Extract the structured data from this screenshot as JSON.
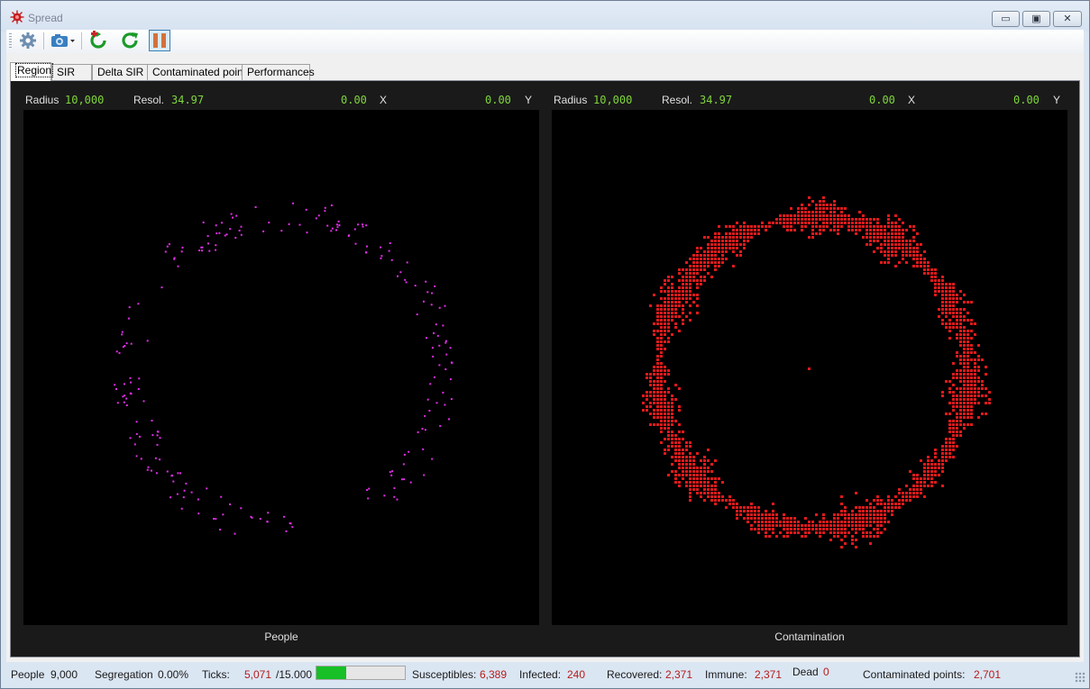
{
  "window": {
    "title": "Spread",
    "min_label": "▭",
    "max_label": "▣",
    "close_label": "✕"
  },
  "toolbar": {
    "settings_icon": "gear-icon",
    "camera_icon": "camera-icon",
    "reset_icon": "restart-icon",
    "reload_icon": "refresh-icon",
    "pause_icon": "pause-icon",
    "accent": "#d5713c"
  },
  "tabs": [
    {
      "label": "Region",
      "active": true
    },
    {
      "label": "SIR"
    },
    {
      "label": "Delta SIR"
    },
    {
      "label": "Contaminated points"
    },
    {
      "label": "Performances"
    }
  ],
  "viewers": [
    {
      "radius_label": "Radius",
      "radius": "10,000",
      "resol_label": "Resol.",
      "resol": "34.97",
      "x": "0.00",
      "x_label": "X",
      "y": "0.00",
      "y_label": "Y",
      "caption": "People",
      "color": "#e12ee8"
    },
    {
      "radius_label": "Radius",
      "radius": "10,000",
      "resol_label": "Resol.",
      "resol": "34.97",
      "x": "0.00",
      "x_label": "X",
      "y": "0.00",
      "y_label": "Y",
      "caption": "Contamination",
      "color": "#e0191b"
    }
  ],
  "status": {
    "people_label": "People",
    "people": "9,000",
    "segregation_label": "Segregation",
    "segregation": "0.00%",
    "ticks_label": "Ticks:",
    "ticks": "5,071",
    "ticks_total": "/15.000",
    "progress": 0.338,
    "susceptibles_label": "Susceptibles:",
    "susceptibles": "6,389",
    "infected_label": "Infected:",
    "infected": "240",
    "recovered_label": "Recovered:",
    "recovered": "2,371",
    "immune_label": "Immune:",
    "immune": "2,371",
    "dead_label": "Dead",
    "dead": "0",
    "contaminated_label": "Contaminated points:",
    "contaminated": "2,701"
  }
}
